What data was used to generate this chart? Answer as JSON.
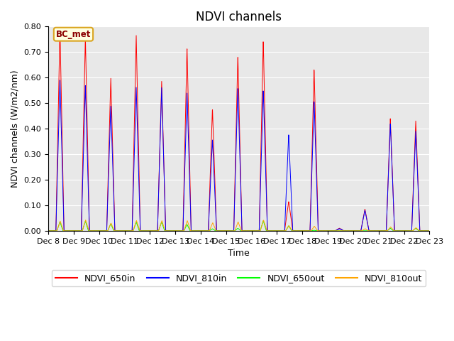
{
  "title": "NDVI channels",
  "ylabel": "NDVI channels (W/m2/nm)",
  "xlabel": "Time",
  "ylim": [
    0.0,
    0.8
  ],
  "annotation": "BC_met",
  "legend": [
    "NDVI_650in",
    "NDVI_810in",
    "NDVI_650out",
    "NDVI_810out"
  ],
  "colors": [
    "red",
    "blue",
    "green",
    "orange"
  ],
  "xtick_labels": [
    "Dec 8",
    "Dec 9",
    "Dec 10",
    "Dec 11",
    "Dec 12",
    "Dec 13",
    "Dec 14",
    "Dec 15",
    "Dec 16",
    "Dec 17",
    "Dec 18",
    "Dec 19",
    "Dec 20",
    "Dec 21",
    "Dec 22",
    "Dec 23"
  ],
  "background_color": "#e8e8e8",
  "title_fontsize": 12,
  "axis_fontsize": 9,
  "tick_fontsize": 8
}
